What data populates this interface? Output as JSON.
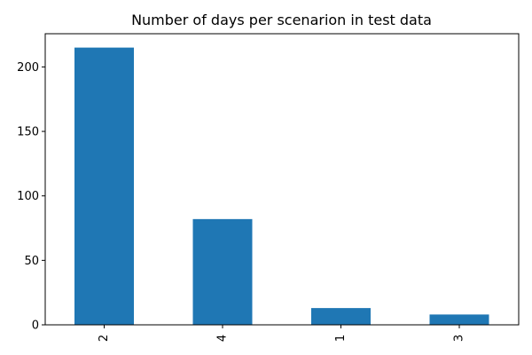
{
  "chart_data": {
    "type": "bar",
    "title": "Number of days per scenarion in test data",
    "xlabel": "",
    "ylabel": "",
    "categories": [
      "2",
      "4",
      "1",
      "3"
    ],
    "values": [
      215,
      82,
      13,
      8
    ],
    "ylim": [
      0,
      225.75
    ],
    "yticks": [
      0,
      50,
      100,
      150,
      200
    ],
    "grid": false,
    "legend": "none",
    "bar_color": "#1f77b4"
  }
}
